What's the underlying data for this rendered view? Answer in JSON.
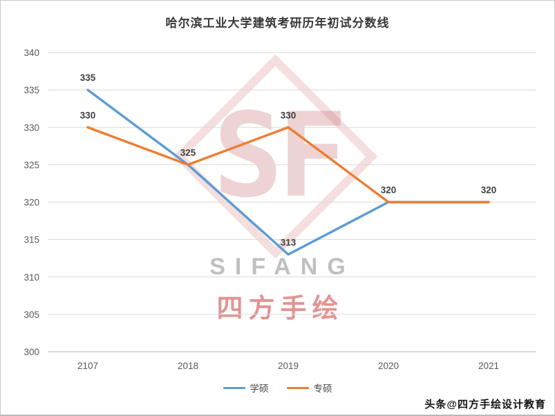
{
  "page": {
    "watermark": {
      "logo_text": "SF",
      "brand_latin": "SIFANG",
      "brand_cn": "四方手绘"
    },
    "credit": "头条@四方手绘设计教育"
  },
  "chart_data": {
    "type": "line",
    "title": "哈尔滨工业大学建筑考研历年初试分数线",
    "categories": [
      "2107",
      "2018",
      "2019",
      "2020",
      "2021"
    ],
    "series": [
      {
        "name": "学硕",
        "color": "#5B9BD5",
        "values": [
          335,
          325,
          313,
          320,
          320
        ]
      },
      {
        "name": "专硕",
        "color": "#ED7D31",
        "values": [
          330,
          325,
          330,
          320,
          320
        ]
      }
    ],
    "ylim": [
      300,
      340
    ],
    "ytick_step": 5,
    "grid": true,
    "legend_position": "bottom",
    "colors": {
      "grid": "#d9d9d9",
      "axis": "#b3b3b3",
      "tick_label": "#595959",
      "data_label": "#404040"
    },
    "data_labels": [
      {
        "series": 0,
        "index": 0,
        "text": "335"
      },
      {
        "series": 1,
        "index": 0,
        "text": "330"
      },
      {
        "series": 0,
        "index": 1,
        "text": "325"
      },
      {
        "series": 1,
        "index": 2,
        "text": "330"
      },
      {
        "series": 0,
        "index": 2,
        "text": "313"
      },
      {
        "series": 0,
        "index": 3,
        "text": "320"
      },
      {
        "series": 1,
        "index": 4,
        "text": "320"
      }
    ]
  }
}
